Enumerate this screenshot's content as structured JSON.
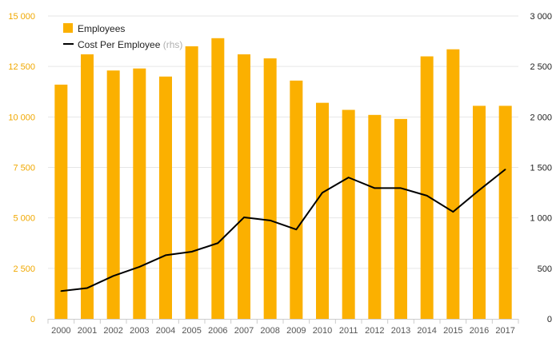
{
  "chart_data": {
    "type": "bar",
    "categories": [
      "2000",
      "2001",
      "2002",
      "2003",
      "2004",
      "2005",
      "2006",
      "2007",
      "2008",
      "2009",
      "2010",
      "2011",
      "2012",
      "2013",
      "2014",
      "2015",
      "2016",
      "2017"
    ],
    "series": [
      {
        "name": "Employees",
        "type": "bar",
        "axis": "left",
        "color": "#fbb000",
        "values": [
          11600,
          13100,
          12300,
          12400,
          12000,
          13500,
          13900,
          13100,
          12900,
          11800,
          10700,
          10350,
          10100,
          9900,
          13000,
          13350,
          10550,
          10550
        ]
      },
      {
        "name": "Cost Per Employee",
        "name_suffix": "(rhs)",
        "type": "line",
        "axis": "right",
        "color": "#000000",
        "values": [
          275,
          305,
          425,
          515,
          630,
          665,
          750,
          1005,
          975,
          885,
          1250,
          1400,
          1295,
          1295,
          1220,
          1060,
          1275,
          1480
        ]
      }
    ],
    "y_left": {
      "ylim": [
        0,
        15000
      ],
      "ticks": [
        0,
        2500,
        5000,
        7500,
        10000,
        12500,
        15000
      ],
      "tick_labels": [
        "0",
        "2 500",
        "5 000",
        "7 500",
        "10 000",
        "12 500",
        "15 000"
      ],
      "color": "#f0a800"
    },
    "y_right": {
      "ylim": [
        0,
        3000
      ],
      "ticks": [
        0,
        500,
        1000,
        1500,
        2000,
        2500,
        3000
      ],
      "tick_labels": [
        "0",
        "500",
        "1 000",
        "1 500",
        "2 000",
        "2 500",
        "3 000"
      ],
      "color": "#222222"
    },
    "grid": true,
    "legend": "top-left",
    "title": "",
    "xlabel": "",
    "ylabel": ""
  }
}
